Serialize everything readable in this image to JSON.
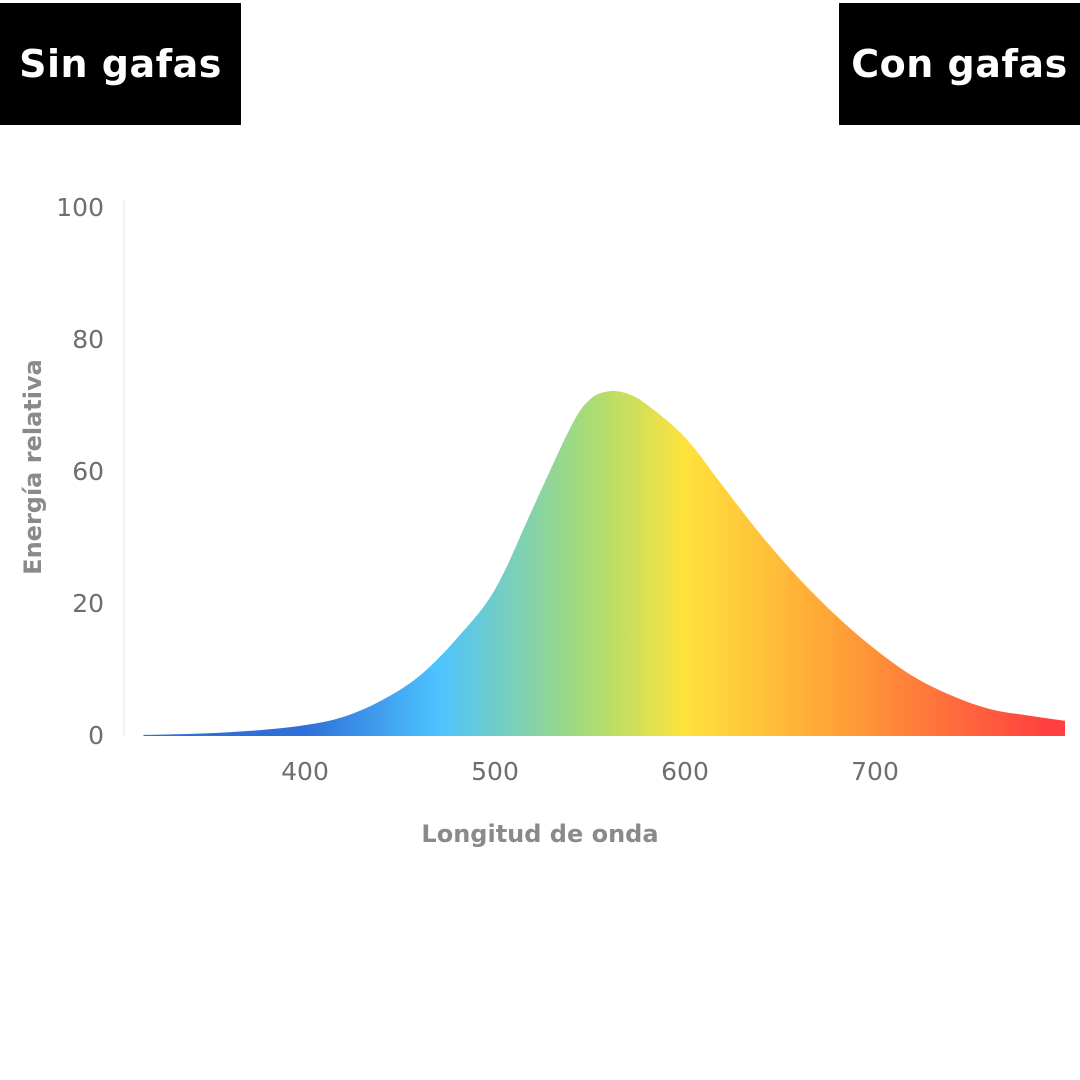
{
  "toggle": {
    "left_label": "Sin gafas",
    "right_label": "Con gafas"
  },
  "chart_data": {
    "type": "area",
    "title": "",
    "xlabel": "Longitud de onda",
    "ylabel": "Energía relativa",
    "x_ticks": [
      "400",
      "500",
      "600",
      "700"
    ],
    "y_ticks": [
      "100",
      "80",
      "60",
      "20",
      "0"
    ],
    "xlim": [
      310,
      800
    ],
    "grid": false,
    "x": [
      315,
      340,
      360,
      380,
      400,
      420,
      440,
      460,
      480,
      500,
      520,
      540,
      550,
      560,
      570,
      580,
      600,
      620,
      640,
      660,
      680,
      700,
      720,
      740,
      760,
      780,
      800
    ],
    "y": [
      0.2,
      0.4,
      0.7,
      1.2,
      2.0,
      3.5,
      6.5,
      11,
      18,
      27,
      42,
      57,
      62,
      63.5,
      63,
      61,
      55,
      46,
      37,
      29,
      22,
      16,
      11,
      7.5,
      5,
      3.8,
      2.8
    ],
    "colors": {
      "violet": "#2f6fd8",
      "blue": "#4dc3ff",
      "green": "#a8dc74",
      "yellow": "#ffe23c",
      "orange": "#ffa236",
      "red": "#ff4040"
    }
  }
}
